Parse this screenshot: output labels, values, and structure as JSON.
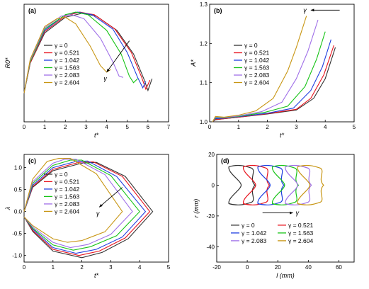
{
  "colors": [
    "#333333",
    "#e8141e",
    "#1f3ee0",
    "#18c418",
    "#a070e8",
    "#c89614"
  ],
  "gamma_legend": [
    "γ = 0",
    "γ = 0.521",
    "γ = 1.042",
    "γ = 1.563",
    "γ = 2.083",
    "γ = 2.604"
  ],
  "chart_data": [
    {
      "panel": "(a)",
      "type": "line",
      "xlabel": "t*",
      "ylabel": "R0*",
      "xlim": [
        0,
        7
      ],
      "ylim": [
        0,
        0.9
      ],
      "xticks": [
        "0",
        "1",
        "2",
        "3",
        "4",
        "5",
        "6",
        "7"
      ],
      "yticks": [],
      "arrow_label": "γ",
      "series": [
        {
          "name": "γ = 0",
          "x": [
            0,
            0.3,
            1,
            2,
            2.8,
            3.5,
            4.5,
            5.3,
            5.8,
            6.0,
            6.2
          ],
          "y": [
            0.22,
            0.45,
            0.68,
            0.8,
            0.83,
            0.81,
            0.7,
            0.52,
            0.33,
            0.24,
            0.33
          ]
        },
        {
          "name": "γ = 0.521",
          "x": [
            0,
            0.3,
            1,
            2,
            2.7,
            3.4,
            4.4,
            5.2,
            5.7,
            5.9,
            6.1
          ],
          "y": [
            0.22,
            0.45,
            0.69,
            0.81,
            0.84,
            0.82,
            0.71,
            0.53,
            0.34,
            0.25,
            0.32
          ]
        },
        {
          "name": "γ = 1.042",
          "x": [
            0,
            0.3,
            1,
            2,
            2.6,
            3.3,
            4.3,
            5.0,
            5.5,
            5.75,
            5.9
          ],
          "y": [
            0.22,
            0.46,
            0.7,
            0.82,
            0.84,
            0.82,
            0.71,
            0.53,
            0.34,
            0.26,
            0.31
          ]
        },
        {
          "name": "γ = 1.563",
          "x": [
            0,
            0.3,
            1,
            2,
            2.5,
            3.1,
            4.0,
            4.7,
            5.1,
            5.3,
            5.5
          ],
          "y": [
            0.22,
            0.46,
            0.71,
            0.82,
            0.84,
            0.82,
            0.7,
            0.52,
            0.35,
            0.3,
            0.33
          ]
        },
        {
          "name": "γ = 2.083",
          "x": [
            0,
            0.3,
            1,
            1.8,
            2.3,
            2.9,
            3.7,
            4.3,
            4.6,
            4.8
          ],
          "y": [
            0.22,
            0.47,
            0.72,
            0.81,
            0.82,
            0.79,
            0.64,
            0.46,
            0.35,
            0.34
          ]
        },
        {
          "name": "γ = 2.604",
          "x": [
            0,
            0.3,
            1,
            1.6,
            2.0,
            2.5,
            3.2,
            3.7,
            4.0,
            4.2
          ],
          "y": [
            0.22,
            0.48,
            0.73,
            0.79,
            0.8,
            0.75,
            0.58,
            0.43,
            0.38,
            0.4
          ]
        }
      ]
    },
    {
      "panel": "(b)",
      "type": "line",
      "xlabel": "t*",
      "ylabel": "A*",
      "xlim": [
        0,
        5
      ],
      "ylim": [
        1.0,
        1.3
      ],
      "xticks": [
        "0",
        "1",
        "2",
        "3",
        "4",
        "5"
      ],
      "yticks": [
        "1.0",
        "1.1",
        "1.2",
        "1.3"
      ],
      "arrow_label": "γ",
      "series": [
        {
          "name": "γ = 0",
          "x": [
            0.1,
            0.2,
            0.5,
            1,
            2,
            3,
            3.6,
            4.0,
            4.35
          ],
          "y": [
            1.0,
            1.005,
            1.008,
            1.012,
            1.02,
            1.03,
            1.06,
            1.11,
            1.19
          ]
        },
        {
          "name": "γ = 0.521",
          "x": [
            0.1,
            0.2,
            0.5,
            1,
            2,
            3,
            3.5,
            3.95,
            4.3
          ],
          "y": [
            1.0,
            1.006,
            1.008,
            1.012,
            1.021,
            1.032,
            1.06,
            1.12,
            1.195
          ]
        },
        {
          "name": "γ = 1.042",
          "x": [
            0.1,
            0.2,
            0.5,
            1,
            2,
            2.9,
            3.5,
            3.9,
            4.2
          ],
          "y": [
            1.0,
            1.008,
            1.009,
            1.013,
            1.022,
            1.035,
            1.08,
            1.14,
            1.21
          ]
        },
        {
          "name": "γ = 1.563",
          "x": [
            0.1,
            0.2,
            0.5,
            1,
            1.9,
            2.7,
            3.3,
            3.7,
            4.0
          ],
          "y": [
            1.0,
            1.01,
            1.01,
            1.014,
            1.024,
            1.04,
            1.09,
            1.16,
            1.23
          ]
        },
        {
          "name": "γ = 2.083",
          "x": [
            0.1,
            0.2,
            0.5,
            1,
            1.8,
            2.5,
            3.0,
            3.4,
            3.75
          ],
          "y": [
            1.0,
            1.012,
            1.011,
            1.015,
            1.026,
            1.05,
            1.11,
            1.18,
            1.26
          ]
        },
        {
          "name": "γ = 2.604",
          "x": [
            0.1,
            0.2,
            0.5,
            1,
            1.6,
            2.2,
            2.7,
            3.0,
            3.35
          ],
          "y": [
            1.0,
            1.014,
            1.012,
            1.017,
            1.028,
            1.06,
            1.13,
            1.19,
            1.27
          ]
        }
      ]
    },
    {
      "panel": "(c)",
      "type": "line",
      "xlabel": "t*",
      "ylabel": "λ",
      "xlim": [
        0,
        5
      ],
      "ylim": [
        -1.15,
        1.3
      ],
      "xticks": [
        "0",
        "1",
        "2",
        "3",
        "4",
        "5"
      ],
      "yticks": [
        "-1.0",
        "-0.5",
        "0.0",
        "0.5",
        "1.0"
      ],
      "arrow_label": "γ",
      "series": [
        {
          "name": "γ = 0",
          "x": [
            0,
            0.3,
            1,
            2,
            2.5,
            3.5,
            4.45,
            3.6,
            2.7,
            2.0,
            1.0,
            0.3,
            0
          ],
          "y": [
            0,
            0.55,
            0.93,
            1.1,
            1.12,
            0.8,
            0.0,
            -0.62,
            -0.93,
            -1.05,
            -0.9,
            -0.45,
            -0.12
          ]
        },
        {
          "name": "γ = 0.521",
          "x": [
            0,
            0.3,
            1,
            1.9,
            2.4,
            3.4,
            4.35,
            3.5,
            2.6,
            1.9,
            1.0,
            0.3,
            0
          ],
          "y": [
            0,
            0.57,
            0.96,
            1.12,
            1.13,
            0.8,
            0.0,
            -0.6,
            -0.9,
            -1.0,
            -0.86,
            -0.43,
            -0.12
          ]
        },
        {
          "name": "γ = 1.042",
          "x": [
            0,
            0.3,
            1,
            1.8,
            2.2,
            3.2,
            4.2,
            3.4,
            2.5,
            1.8,
            1.0,
            0.3,
            0
          ],
          "y": [
            0,
            0.6,
            1.0,
            1.14,
            1.15,
            0.8,
            0.0,
            -0.58,
            -0.86,
            -0.95,
            -0.82,
            -0.4,
            -0.12
          ]
        },
        {
          "name": "γ = 1.563",
          "x": [
            0,
            0.3,
            1,
            1.6,
            2.0,
            3.0,
            4.0,
            3.2,
            2.3,
            1.7,
            1.0,
            0.3,
            0
          ],
          "y": [
            0,
            0.64,
            1.05,
            1.17,
            1.17,
            0.82,
            0.0,
            -0.55,
            -0.8,
            -0.88,
            -0.76,
            -0.38,
            -0.12
          ]
        },
        {
          "name": "γ = 2.083",
          "x": [
            0,
            0.3,
            1,
            1.4,
            1.8,
            2.8,
            3.75,
            3.0,
            2.2,
            1.6,
            1.0,
            0.3,
            0
          ],
          "y": [
            0,
            0.68,
            1.1,
            1.19,
            1.19,
            0.84,
            0.0,
            -0.52,
            -0.75,
            -0.82,
            -0.7,
            -0.35,
            -0.12
          ]
        },
        {
          "name": "γ = 2.604",
          "x": [
            0,
            0.3,
            0.8,
            1.2,
            1.6,
            2.5,
            3.4,
            2.8,
            2.0,
            1.5,
            1.0,
            0.3,
            0
          ],
          "y": [
            0,
            0.74,
            1.14,
            1.21,
            1.21,
            0.86,
            0.0,
            -0.46,
            -0.66,
            -0.7,
            -0.62,
            -0.32,
            -0.12
          ]
        }
      ]
    },
    {
      "panel": "(d)",
      "type": "line",
      "xlabel": "l (mm)",
      "ylabel": "r (mm)",
      "xlim": [
        -20,
        70
      ],
      "ylim": [
        -50,
        20
      ],
      "xticks": [
        "-20",
        "0",
        "20",
        "40",
        "60"
      ],
      "yticks": [
        "-40",
        "-20",
        "0",
        "20"
      ],
      "arrow_label": "γ",
      "series": [
        {
          "name": "γ = 0",
          "x_offset": 0
        },
        {
          "name": "γ = 0.521",
          "x_offset": 9.5
        },
        {
          "name": "γ = 1.042",
          "x_offset": 19
        },
        {
          "name": "γ = 1.563",
          "x_offset": 28.5
        },
        {
          "name": "γ = 2.083",
          "x_offset": 37
        },
        {
          "name": "γ = 2.604",
          "x_offset": 45
        }
      ]
    }
  ]
}
